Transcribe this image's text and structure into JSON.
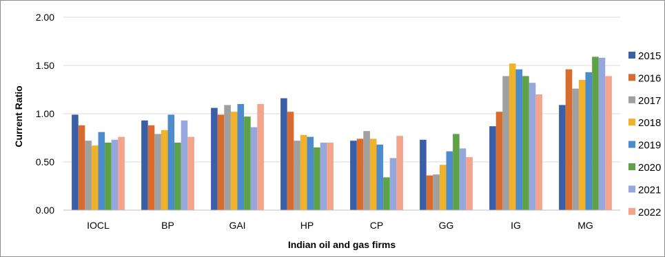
{
  "chart_data": {
    "type": "bar",
    "title": "",
    "xlabel": "Indian oil and gas firms",
    "ylabel": "Current Ratio",
    "ylim": [
      0,
      2
    ],
    "yticks": [
      "0.00",
      "0.50",
      "1.00",
      "1.50",
      "2.00"
    ],
    "grid": "horizontal",
    "legend_position": "right",
    "categories": [
      "IOCL",
      "BP",
      "GAI",
      "HP",
      "CP",
      "GG",
      "IG",
      "MG"
    ],
    "series": [
      {
        "name": "2015",
        "color": "#3b5ea8",
        "values": [
          0.99,
          0.93,
          1.06,
          1.16,
          0.72,
          0.73,
          0.87,
          1.09
        ]
      },
      {
        "name": "2016",
        "color": "#d86b2e",
        "values": [
          0.88,
          0.88,
          0.99,
          1.02,
          0.74,
          0.36,
          1.02,
          1.46
        ]
      },
      {
        "name": "2017",
        "color": "#a0a0a0",
        "values": [
          0.72,
          0.79,
          1.09,
          0.72,
          0.82,
          0.37,
          1.39,
          1.26
        ]
      },
      {
        "name": "2018",
        "color": "#f1b22b",
        "values": [
          0.67,
          0.83,
          1.02,
          0.78,
          0.74,
          0.47,
          1.52,
          1.35
        ]
      },
      {
        "name": "2019",
        "color": "#4d8ccc",
        "values": [
          0.81,
          0.99,
          1.1,
          0.76,
          0.68,
          0.61,
          1.46,
          1.43
        ]
      },
      {
        "name": "2020",
        "color": "#5fa146",
        "values": [
          0.7,
          0.7,
          0.97,
          0.65,
          0.34,
          0.79,
          1.39,
          1.59
        ]
      },
      {
        "name": "2021",
        "color": "#95a7dc",
        "values": [
          0.73,
          0.93,
          0.86,
          0.7,
          0.54,
          0.64,
          1.32,
          1.58
        ]
      },
      {
        "name": "2022",
        "color": "#f3a48a",
        "values": [
          0.76,
          0.76,
          1.1,
          0.7,
          0.77,
          0.55,
          1.2,
          1.39
        ]
      }
    ]
  }
}
